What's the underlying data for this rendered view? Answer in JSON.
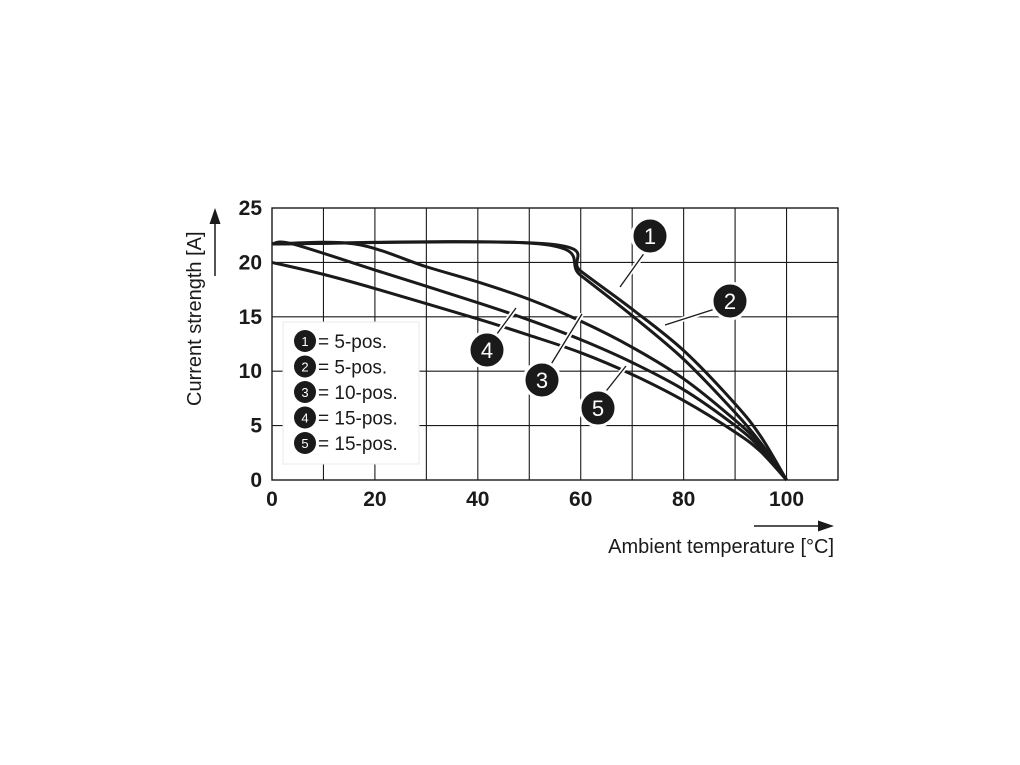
{
  "chart_data": {
    "type": "line",
    "xlabel": "Ambient temperature [°C]",
    "ylabel": "Current strength [A]",
    "xlim": [
      0,
      110
    ],
    "ylim": [
      0,
      25
    ],
    "xticks": [
      0,
      20,
      40,
      60,
      80,
      100
    ],
    "yticks": [
      0,
      5,
      10,
      15,
      20,
      25
    ],
    "grid": true,
    "series": [
      {
        "name": "5-pos.",
        "marker": "1",
        "points": [
          [
            0,
            21.7
          ],
          [
            52,
            21.7
          ],
          [
            60,
            18.8
          ],
          [
            70,
            15.1
          ],
          [
            80,
            11.1
          ],
          [
            90,
            6.2
          ],
          [
            95,
            3.4
          ],
          [
            100,
            0
          ]
        ]
      },
      {
        "name": "5-pos.",
        "marker": "2",
        "points": [
          [
            0,
            21.7
          ],
          [
            53.5,
            21.7
          ],
          [
            60,
            19.2
          ],
          [
            70,
            15.7
          ],
          [
            80,
            11.9
          ],
          [
            90,
            7.0
          ],
          [
            95,
            4.0
          ],
          [
            100,
            0
          ]
        ]
      },
      {
        "name": "10-pos.",
        "marker": "3",
        "points": [
          [
            0,
            21.7
          ],
          [
            16,
            21.7
          ],
          [
            30,
            19.6
          ],
          [
            40,
            18.2
          ],
          [
            50,
            16.6
          ],
          [
            60,
            14.6
          ],
          [
            70,
            12.2
          ],
          [
            80,
            9.3
          ],
          [
            90,
            5.5
          ],
          [
            95,
            3.2
          ],
          [
            100,
            0
          ]
        ]
      },
      {
        "name": "15-pos.",
        "marker": "4",
        "points": [
          [
            0,
            21.7
          ],
          [
            4,
            21.7
          ],
          [
            20,
            19.3
          ],
          [
            40,
            16.3
          ],
          [
            50,
            14.7
          ],
          [
            60,
            12.9
          ],
          [
            70,
            10.8
          ],
          [
            80,
            8.3
          ],
          [
            90,
            5.0
          ],
          [
            95,
            2.9
          ],
          [
            100,
            0
          ]
        ]
      },
      {
        "name": "15-pos.",
        "marker": "5",
        "points": [
          [
            0,
            20.0
          ],
          [
            10,
            18.9
          ],
          [
            20,
            17.6
          ],
          [
            40,
            14.8
          ],
          [
            50,
            13.3
          ],
          [
            60,
            11.7
          ],
          [
            70,
            9.7
          ],
          [
            80,
            7.3
          ],
          [
            90,
            4.4
          ],
          [
            95,
            2.6
          ],
          [
            100,
            0
          ]
        ]
      }
    ],
    "legend": {
      "placement": "left-inside",
      "entries": [
        {
          "marker": "1",
          "label": "= 5-pos."
        },
        {
          "marker": "2",
          "label": "= 5-pos."
        },
        {
          "marker": "3",
          "label": "= 10-pos."
        },
        {
          "marker": "4",
          "label": "= 15-pos."
        },
        {
          "marker": "5",
          "label": "= 15-pos."
        }
      ]
    }
  }
}
